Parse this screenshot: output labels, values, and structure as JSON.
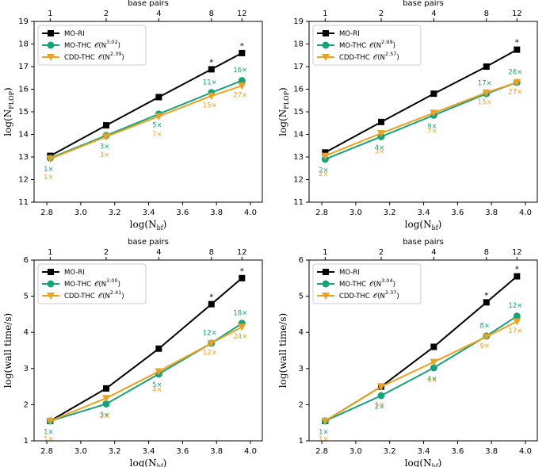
{
  "chart_data": [
    {
      "type": "line",
      "x_label": {
        "text": "log(N",
        "sub": "bf",
        "tail": ")"
      },
      "y_label": {
        "text": "log(N",
        "sub": "FLOP",
        "tail": ")"
      },
      "x": [
        2.82,
        3.15,
        3.46,
        3.77,
        3.95
      ],
      "xlim": [
        2.725,
        4.07
      ],
      "ylim": [
        11,
        19
      ],
      "xticks": [
        2.8,
        {
          "value": 3,
          "label": "3.0"
        },
        3.2,
        3.4,
        3.6,
        3.8,
        {
          "value": 4,
          "label": "4.0"
        }
      ],
      "yticks": [
        11,
        12,
        13,
        14,
        15,
        16,
        17,
        18,
        19
      ],
      "top_axis": {
        "label": "base pairs",
        "ticks": [
          {
            "value": 2.82,
            "label": "1"
          },
          {
            "value": 3.15,
            "label": "2"
          },
          {
            "value": 3.46,
            "label": "4"
          },
          {
            "value": 3.77,
            "label": "8"
          },
          {
            "value": 3.95,
            "label": "12"
          }
        ]
      },
      "legend": "upper left",
      "series": [
        {
          "name": "MO-RI",
          "color": "#000000",
          "marker": "square",
          "values": [
            13.05,
            14.4,
            15.65,
            16.88,
            17.6
          ],
          "star": {
            "text": "*",
            "points": [
              3,
              4
            ]
          }
        },
        {
          "name": "MO-THC",
          "complexity": [
            "𝒪(N",
            "3.02",
            ")"
          ],
          "color": "#16a27a",
          "marker": "circle",
          "values": [
            12.95,
            13.95,
            14.9,
            15.85,
            16.38
          ],
          "speedups": [
            "1×",
            "3×",
            "5×",
            "11×",
            "16×"
          ]
        },
        {
          "name": "CDD-THC",
          "complexity": [
            "𝒪(N",
            "2.39",
            ")"
          ],
          "color": "#eca221",
          "marker": "triangle",
          "values": [
            12.92,
            13.9,
            14.8,
            15.7,
            16.15
          ],
          "speedups": [
            "1×",
            "3×",
            "7×",
            "15×",
            "27×"
          ]
        }
      ]
    },
    {
      "type": "line",
      "x_label": {
        "text": "log(N",
        "sub": "bf",
        "tail": ")"
      },
      "y_label": {
        "text": "log(N",
        "sub": "FLOP",
        "tail": ")"
      },
      "x": [
        2.82,
        3.15,
        3.46,
        3.77,
        3.95
      ],
      "xlim": [
        2.725,
        4.07
      ],
      "ylim": [
        11,
        19
      ],
      "xticks": [
        2.8,
        {
          "value": 3,
          "label": "3.0"
        },
        3.2,
        3.4,
        3.6,
        3.8,
        {
          "value": 4,
          "label": "4.0"
        }
      ],
      "yticks": [
        11,
        12,
        13,
        14,
        15,
        16,
        17,
        18,
        19
      ],
      "top_axis": {
        "label": "base pairs",
        "ticks": [
          {
            "value": 2.82,
            "label": "1"
          },
          {
            "value": 3.15,
            "label": "2"
          },
          {
            "value": 3.46,
            "label": "4"
          },
          {
            "value": 3.77,
            "label": "8"
          },
          {
            "value": 3.95,
            "label": "12"
          }
        ]
      },
      "legend": "upper left",
      "series": [
        {
          "name": "MO-RI",
          "color": "#000000",
          "marker": "square",
          "values": [
            13.2,
            14.55,
            15.8,
            17.0,
            17.75
          ],
          "star": {
            "text": "*",
            "points": [
              4
            ]
          }
        },
        {
          "name": "MO-THC",
          "complexity": [
            "𝒪(N",
            "2.99",
            ")"
          ],
          "color": "#16a27a",
          "marker": "circle",
          "values": [
            12.9,
            13.9,
            14.85,
            15.8,
            16.3
          ],
          "speedups": [
            "2×",
            "4×",
            "9×",
            "17×",
            "26×"
          ]
        },
        {
          "name": "CDD-THC",
          "complexity": [
            "𝒪(N",
            "2.57",
            ")"
          ],
          "color": "#eca221",
          "marker": "triangle",
          "values": [
            13.05,
            14.05,
            14.95,
            15.85,
            16.3
          ],
          "speedups": [
            "2×",
            "3×",
            "7×",
            "15×",
            "27×"
          ]
        }
      ]
    },
    {
      "type": "line",
      "x_label": {
        "text": "log(N",
        "sub": "bf",
        "tail": ")"
      },
      "y_label": {
        "text": "log(wall time/s)"
      },
      "x": [
        2.82,
        3.15,
        3.46,
        3.77,
        3.95
      ],
      "xlim": [
        2.725,
        4.07
      ],
      "ylim": [
        1,
        6
      ],
      "xticks": [
        2.8,
        {
          "value": 3,
          "label": "3.0"
        },
        3.2,
        3.4,
        3.6,
        3.8,
        {
          "value": 4,
          "label": "4.0"
        }
      ],
      "yticks": [
        1,
        2,
        3,
        4,
        5,
        6
      ],
      "top_axis": {
        "label": "base pairs",
        "ticks": [
          {
            "value": 2.82,
            "label": "1"
          },
          {
            "value": 3.15,
            "label": "2"
          },
          {
            "value": 3.46,
            "label": "4"
          },
          {
            "value": 3.77,
            "label": "8"
          },
          {
            "value": 3.95,
            "label": "12"
          }
        ]
      },
      "legend": "upper left",
      "series": [
        {
          "name": "MO-RI",
          "color": "#000000",
          "marker": "square",
          "values": [
            1.55,
            2.45,
            3.55,
            4.78,
            5.5
          ],
          "star": {
            "text": "*",
            "points": [
              3,
              4
            ]
          }
        },
        {
          "name": "MO-THC",
          "complexity": [
            "𝒪(N",
            "3.00",
            ")"
          ],
          "color": "#16a27a",
          "marker": "circle",
          "values": [
            1.55,
            2.02,
            2.85,
            3.7,
            4.25
          ],
          "speedups": [
            "1×",
            "3×",
            "5×",
            "12×",
            "18×"
          ]
        },
        {
          "name": "CDD-THC",
          "complexity": [
            "𝒪(N",
            "2.41",
            ")"
          ],
          "color": "#eca221",
          "marker": "triangle",
          "values": [
            1.55,
            2.18,
            2.92,
            3.7,
            4.15
          ],
          "speedups": [
            "1×",
            "2×",
            "4×",
            "12×",
            "24×"
          ]
        }
      ]
    },
    {
      "type": "line",
      "x_label": {
        "text": "log(N",
        "sub": "bf",
        "tail": ")"
      },
      "y_label": {
        "text": "log(wall time/s)"
      },
      "x": [
        2.82,
        3.15,
        3.46,
        3.77,
        3.95
      ],
      "xlim": [
        2.725,
        4.07
      ],
      "ylim": [
        1,
        6
      ],
      "xticks": [
        2.8,
        {
          "value": 3,
          "label": "3.0"
        },
        3.2,
        3.4,
        3.6,
        3.8,
        {
          "value": 4,
          "label": "4.0"
        }
      ],
      "yticks": [
        1,
        2,
        3,
        4,
        5,
        6
      ],
      "top_axis": {
        "label": "base pairs",
        "ticks": [
          {
            "value": 2.82,
            "label": "1"
          },
          {
            "value": 3.15,
            "label": "2"
          },
          {
            "value": 3.46,
            "label": "4"
          },
          {
            "value": 3.77,
            "label": "8"
          },
          {
            "value": 3.95,
            "label": "12"
          }
        ]
      },
      "legend": "upper left",
      "series": [
        {
          "name": "MO-RI",
          "color": "#000000",
          "marker": "square",
          "values": [
            1.55,
            2.5,
            3.6,
            4.83,
            5.55
          ],
          "star": {
            "text": "*",
            "points": [
              3,
              4
            ]
          }
        },
        {
          "name": "MO-THC",
          "complexity": [
            "𝒪(N",
            "3.04",
            ")"
          ],
          "color": "#16a27a",
          "marker": "circle",
          "values": [
            1.55,
            2.25,
            3.02,
            3.9,
            4.45
          ],
          "speedups": [
            "1×",
            "2×",
            "4×",
            "8×",
            "12×"
          ]
        },
        {
          "name": "CDD-THC",
          "complexity": [
            "𝒪(N",
            "2.37",
            ")"
          ],
          "color": "#eca221",
          "marker": "triangle",
          "values": [
            1.55,
            2.5,
            3.18,
            3.88,
            4.3
          ],
          "speedups": [
            "1×",
            "1×",
            "3×",
            "9×",
            "17×"
          ]
        }
      ]
    }
  ]
}
